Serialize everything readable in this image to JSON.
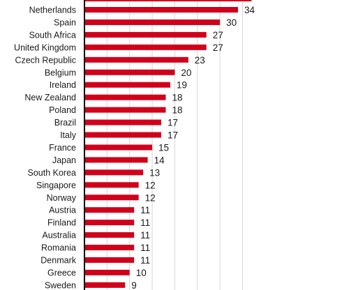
{
  "chart_data": {
    "type": "bar",
    "orientation": "horizontal",
    "title": "",
    "xlabel": "",
    "ylabel": "",
    "grid": true,
    "bar_color": "#d0021b",
    "categories": [
      "Netherlands",
      "Spain",
      "South Africa",
      "United Kingdom",
      "Czech Republic",
      "Belgium",
      "Ireland",
      "New Zealand",
      "Poland",
      "Brazil",
      "Italy",
      "France",
      "Japan",
      "South Korea",
      "Singapore",
      "Norway",
      "Austria",
      "Finland",
      "Australia",
      "Romania",
      "Denmark",
      "Greece",
      "Sweden"
    ],
    "values": [
      34,
      30,
      27,
      27,
      23,
      20,
      19,
      18,
      18,
      17,
      17,
      15,
      14,
      13,
      12,
      12,
      11,
      11,
      11,
      11,
      11,
      10,
      9
    ],
    "xlim": [
      0,
      37
    ]
  }
}
